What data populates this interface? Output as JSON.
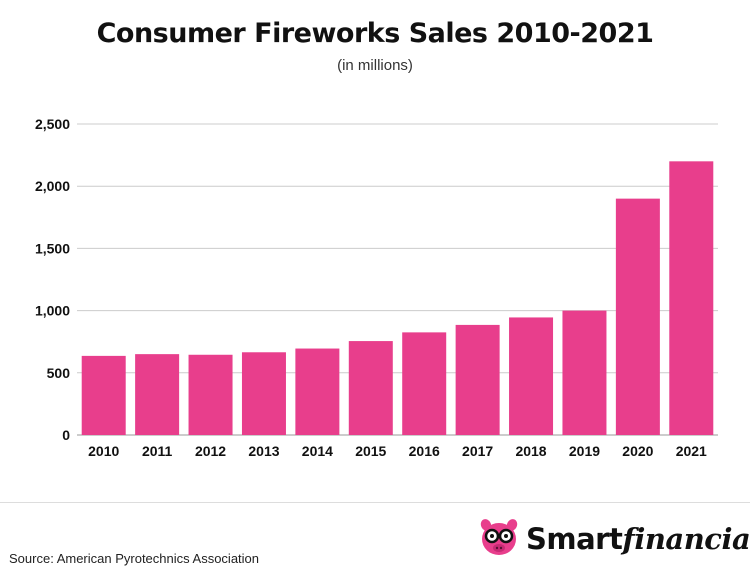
{
  "header": {
    "title": "Consumer Fireworks Sales 2010-2021",
    "subtitle": "(in millions)"
  },
  "footer": {
    "source": "Source: American Pyrotechnics Association",
    "logo": {
      "icon": "pig-with-glasses-icon",
      "word_a": "Smart",
      "word_b": "financial"
    }
  },
  "colors": {
    "bar": "#E83E8C",
    "grid": "#cccccc",
    "axis_text": "#111111"
  },
  "chart_data": {
    "type": "bar",
    "title": "Consumer Fireworks Sales 2010-2021",
    "subtitle": "(in millions)",
    "xlabel": "",
    "ylabel": "",
    "categories": [
      "2010",
      "2011",
      "2012",
      "2013",
      "2014",
      "2015",
      "2016",
      "2017",
      "2018",
      "2019",
      "2020",
      "2021"
    ],
    "values": [
      636,
      650,
      645,
      665,
      695,
      755,
      825,
      885,
      945,
      1000,
      1900,
      2200
    ],
    "ylim": [
      0,
      2500
    ],
    "yticks": [
      0,
      500,
      1000,
      1500,
      2000,
      2500
    ],
    "ytick_labels": [
      "0",
      "500",
      "1,000",
      "1,500",
      "2,000",
      "2,500"
    ],
    "grid": true,
    "legend": "none"
  }
}
